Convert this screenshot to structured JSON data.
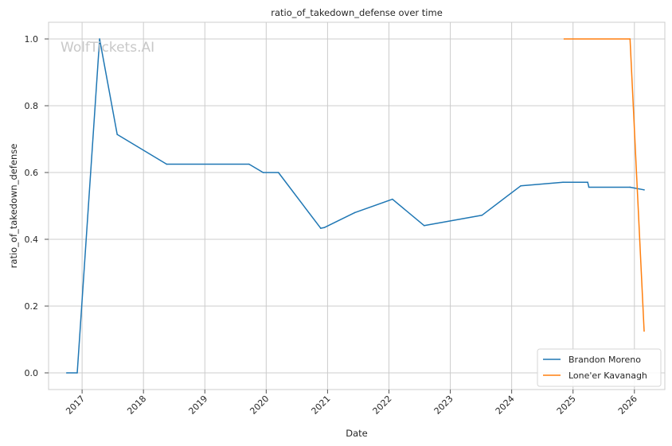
{
  "chart_data": {
    "type": "line",
    "title": "ratio_of_takedown_defense over time",
    "xlabel": "Date",
    "ylabel": "ratio_of_takedown_defense",
    "watermark": "WolfTickets.AI",
    "x_ticks": [
      "2017",
      "2018",
      "2019",
      "2020",
      "2021",
      "2022",
      "2023",
      "2024",
      "2025",
      "2026"
    ],
    "y_ticks": [
      "0.0",
      "0.2",
      "0.4",
      "0.6",
      "0.8",
      "1.0"
    ],
    "xlim": [
      "2016-06-15",
      "2026-07-01"
    ],
    "ylim": [
      -0.05,
      1.05
    ],
    "grid": true,
    "legend_position": "bottom-right",
    "series": [
      {
        "name": "Brandon Moreno",
        "color": "#1f77b4",
        "points": [
          {
            "x": "2016-10-01",
            "y": 0.0
          },
          {
            "x": "2016-12-03",
            "y": 0.0
          },
          {
            "x": "2017-04-15",
            "y": 1.0
          },
          {
            "x": "2017-07-29",
            "y": 0.714
          },
          {
            "x": "2018-05-19",
            "y": 0.625
          },
          {
            "x": "2019-09-21",
            "y": 0.625
          },
          {
            "x": "2019-12-14",
            "y": 0.6
          },
          {
            "x": "2020-03-14",
            "y": 0.6
          },
          {
            "x": "2020-11-21",
            "y": 0.433
          },
          {
            "x": "2020-12-12",
            "y": 0.435
          },
          {
            "x": "2021-06-12",
            "y": 0.48
          },
          {
            "x": "2022-01-22",
            "y": 0.52
          },
          {
            "x": "2022-07-30",
            "y": 0.441
          },
          {
            "x": "2023-07-08",
            "y": 0.472
          },
          {
            "x": "2024-02-24",
            "y": 0.56
          },
          {
            "x": "2024-11-02",
            "y": 0.571
          },
          {
            "x": "2025-03-29",
            "y": 0.571
          },
          {
            "x": "2025-04-05",
            "y": 0.556
          },
          {
            "x": "2025-12-06",
            "y": 0.556
          },
          {
            "x": "2026-02-28",
            "y": 0.548
          }
        ]
      },
      {
        "name": "Lone'er Kavanagh",
        "color": "#ff7f0e",
        "points": [
          {
            "x": "2024-11-09",
            "y": 1.0
          },
          {
            "x": "2025-12-06",
            "y": 1.0
          },
          {
            "x": "2026-02-28",
            "y": 0.125
          }
        ]
      }
    ]
  }
}
